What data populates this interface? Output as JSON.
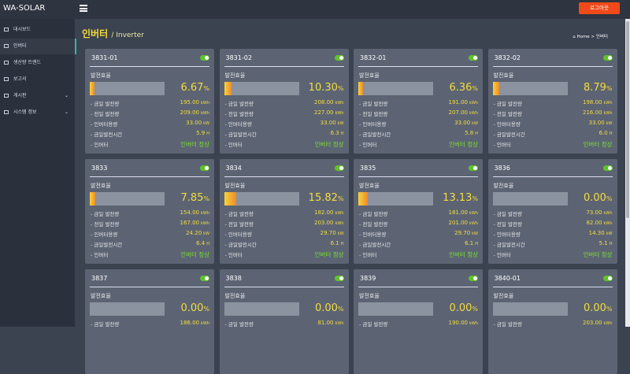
{
  "header": {
    "brand": "WA-SOLAR",
    "logout": "로그아웃"
  },
  "sidebar": {
    "items": [
      "대시보드",
      "인버터",
      "생산량 트렌드",
      "보고서",
      "게시판",
      "시스템 정보"
    ]
  },
  "page": {
    "title": "인버터",
    "subtitle": "/ Inverter",
    "breadcrumb": {
      "home": "Home",
      "current": "인버터"
    }
  },
  "card_labels": {
    "efficiency": "발전효율",
    "efficiency_unit": "%",
    "rows": [
      "- 금일 발전량",
      "- 전일 발전량",
      "- 인버터용량",
      "- 금일발전시간",
      "- 인버터"
    ],
    "units": [
      "kWh",
      "kWh",
      "kW",
      "H"
    ]
  },
  "cards": [
    {
      "name": "3831-01",
      "efficiency": "6.67",
      "rows": [
        "195.00",
        "209.00",
        "33.00",
        "5.9",
        "인버터 정상"
      ]
    },
    {
      "name": "3831-02",
      "efficiency": "10.30",
      "rows": [
        "208.00",
        "227.00",
        "33.00",
        "6.3",
        "인버터 정상"
      ]
    },
    {
      "name": "3832-01",
      "efficiency": "6.36",
      "rows": [
        "191.00",
        "207.00",
        "33.00",
        "5.8",
        "인버터 정상"
      ]
    },
    {
      "name": "3832-02",
      "efficiency": "8.79",
      "rows": [
        "198.00",
        "216.00",
        "33.00",
        "6.0",
        "인버터 정상"
      ]
    },
    {
      "name": "3833",
      "efficiency": "7.85",
      "rows": [
        "154.00",
        "167.00",
        "24.20",
        "6.4",
        "인버터 정상"
      ]
    },
    {
      "name": "3834",
      "efficiency": "15.82",
      "rows": [
        "182.00",
        "203.00",
        "29.70",
        "6.1",
        "인버터 정상"
      ]
    },
    {
      "name": "3835",
      "efficiency": "13.13",
      "rows": [
        "181.00",
        "201.00",
        "29.70",
        "6.1",
        "인버터 정상"
      ]
    },
    {
      "name": "3836",
      "efficiency": "0.00",
      "rows": [
        "73.00",
        "82.00",
        "14.30",
        "5.1",
        "인버터 정상"
      ]
    },
    {
      "name": "3837",
      "efficiency": "0.00",
      "rows": [
        "186.00"
      ]
    },
    {
      "name": "3838",
      "efficiency": "0.00",
      "rows": [
        "81.00"
      ]
    },
    {
      "name": "3839",
      "efficiency": "0.00",
      "rows": [
        "190.00"
      ]
    },
    {
      "name": "3840-01",
      "efficiency": "0.00",
      "rows": [
        "203.00"
      ]
    }
  ]
}
